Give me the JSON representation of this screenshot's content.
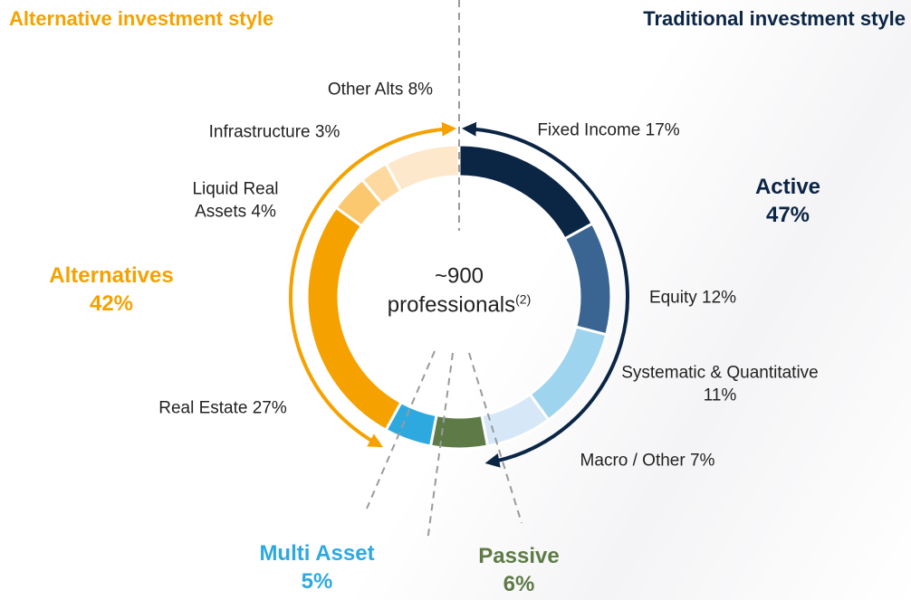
{
  "chart_data": {
    "type": "donut",
    "header_left": "Alternative investment style",
    "header_right": "Traditional investment style",
    "center_value": "~900",
    "center_label": "professionals",
    "center_footnote": "(2)",
    "categories": [
      "Fixed Income",
      "Equity",
      "Systematic & Quantitative",
      "Macro / Other",
      "Passive",
      "Multi Asset",
      "Real Estate",
      "Liquid Real Assets",
      "Infrastructure",
      "Other Alts"
    ],
    "values": [
      17,
      12,
      11,
      7,
      6,
      5,
      27,
      4,
      3,
      8
    ],
    "value_labels": [
      "17%",
      "12%",
      "11%",
      "7%",
      "6%",
      "5%",
      "27%",
      "4%",
      "3%",
      "8%"
    ],
    "colors": [
      "#0b2545",
      "#3a6592",
      "#9fd4ef",
      "#d6e8f8",
      "#5e7b47",
      "#2ea9e0",
      "#f5a200",
      "#fbc870",
      "#fdd9a0",
      "#fde8cc"
    ],
    "groups": [
      {
        "name": "Active",
        "value": 47,
        "value_label": "47%",
        "color": "#0b2545"
      },
      {
        "name": "Alternatives",
        "value": 42,
        "value_label": "42%",
        "color": "#f5a200"
      },
      {
        "name": "Multi Asset",
        "value": 5,
        "value_label": "5%",
        "color": "#2ea9e0"
      },
      {
        "name": "Passive",
        "value": 6,
        "value_label": "6%",
        "color": "#5e7b47"
      }
    ]
  }
}
